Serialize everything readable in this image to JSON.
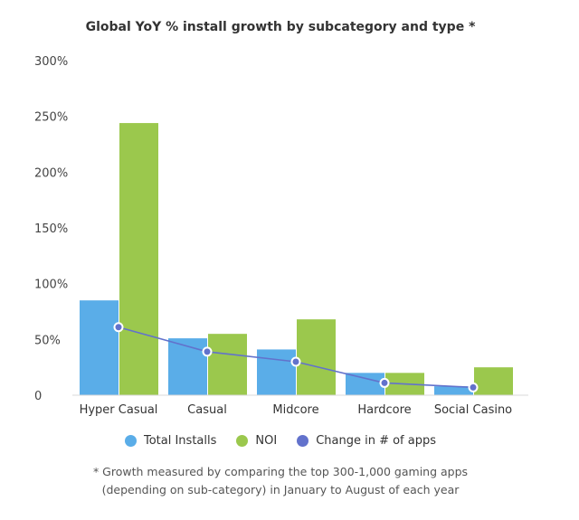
{
  "chart_data": {
    "type": "bar",
    "title": "Global YoY % install growth by subcategory and type *",
    "categories": [
      "Hyper Casual",
      "Casual",
      "Midcore",
      "Hardcore",
      "Social Casino"
    ],
    "series": [
      {
        "name": "Total Installs",
        "kind": "bar",
        "color": "#5aade8",
        "values": [
          85,
          51,
          41,
          20,
          8
        ]
      },
      {
        "name": "NOI",
        "kind": "bar",
        "color": "#9bc84d",
        "values": [
          244,
          55,
          68,
          20,
          25
        ]
      },
      {
        "name": "Change in # of apps",
        "kind": "line",
        "color": "#6272cc",
        "values": [
          61,
          39,
          30,
          11,
          7
        ]
      }
    ],
    "ylim": [
      0,
      300
    ],
    "yticks": [
      "0",
      "50%",
      "100%",
      "150%",
      "200%",
      "250%",
      "300%"
    ],
    "grid": false,
    "legend_position": "bottom"
  },
  "footnote": {
    "line1": "* Growth measured by comparing the top 300-1,000 gaming apps",
    "line2": "(depending on sub-category) in January to August of each year"
  }
}
